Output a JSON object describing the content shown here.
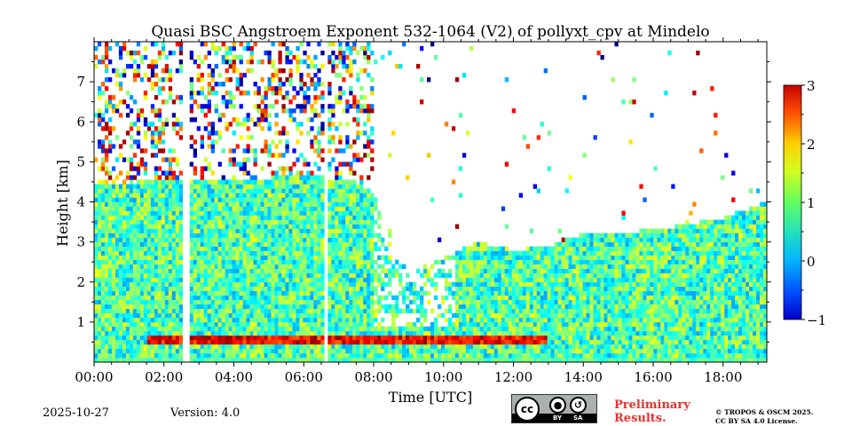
{
  "chart_data": {
    "type": "heatmap",
    "title": "Quasi BSC Angstroem Exponent 532-1064 (V2) of pollyxt_cpv at Mindelo",
    "xlabel": "Time [UTC]",
    "ylabel": "Height [km]",
    "xlim": [
      "00:00",
      "19:15"
    ],
    "ylim_km": [
      0,
      8
    ],
    "x_ticks": [
      "00:00",
      "02:00",
      "04:00",
      "06:00",
      "08:00",
      "10:00",
      "12:00",
      "14:00",
      "16:00",
      "18:00"
    ],
    "y_ticks": [
      "1",
      "2",
      "3",
      "4",
      "5",
      "6",
      "7"
    ],
    "colorbar": {
      "min": -1,
      "max": 3,
      "ticks": [
        "−1",
        "0",
        "1",
        "2",
        "3"
      ],
      "colormap": "jet"
    },
    "data_gaps_utc": [
      [
        "02:33",
        "02:42"
      ],
      [
        "06:33",
        "06:42"
      ]
    ],
    "aerosol_layer_top_km": [
      {
        "time": "00:00",
        "top": 4.4
      },
      {
        "time": "02:00",
        "top": 4.55
      },
      {
        "time": "04:00",
        "top": 4.5
      },
      {
        "time": "06:00",
        "top": 4.7
      },
      {
        "time": "07:30",
        "top": 4.5
      },
      {
        "time": "08:00",
        "top": 4.2
      },
      {
        "time": "09:00",
        "top": 2.2
      },
      {
        "time": "10:00",
        "top": 2.6
      },
      {
        "time": "11:00",
        "top": 3.0
      },
      {
        "time": "12:00",
        "top": 2.8
      },
      {
        "time": "13:00",
        "top": 2.9
      },
      {
        "time": "14:00",
        "top": 3.2
      },
      {
        "time": "16:00",
        "top": 3.3
      },
      {
        "time": "18:00",
        "top": 3.6
      },
      {
        "time": "19:15",
        "top": 4.0
      }
    ],
    "high_exponent_near_surface_layer": {
      "height_km": [
        0.5,
        0.7
      ],
      "time_range": [
        "01:30",
        "13:00"
      ],
      "value_approx": 2.5
    },
    "typical_value_in_layer": 0.8
  },
  "footer": {
    "date": "2025-10-27",
    "version": "Version: 4.0",
    "prelim_line1": "Preliminary",
    "prelim_line2": "Results.",
    "copyright_line1": "© TROPOS & OSCM 2025.",
    "copyright_line2": "CC BY SA 4.0 License.",
    "license_badge": {
      "cc": "cc",
      "by": "BY",
      "sa": "SA"
    }
  },
  "colors": {
    "prelim": "#e8312f",
    "background": "#ffffff"
  }
}
